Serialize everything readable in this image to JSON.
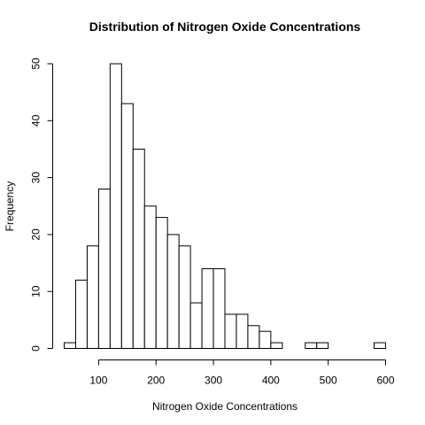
{
  "chart_data": {
    "type": "bar",
    "title": "Distribution of Nitrogen Oxide Concentrations",
    "xlabel": "Nitrogen Oxide Concentrations",
    "ylabel": "Frequency",
    "bin_width": 20,
    "bins": [
      {
        "start": 40,
        "end": 60,
        "count": 1
      },
      {
        "start": 60,
        "end": 80,
        "count": 12
      },
      {
        "start": 80,
        "end": 100,
        "count": 18
      },
      {
        "start": 100,
        "end": 120,
        "count": 28
      },
      {
        "start": 120,
        "end": 140,
        "count": 50
      },
      {
        "start": 140,
        "end": 160,
        "count": 43
      },
      {
        "start": 160,
        "end": 180,
        "count": 35
      },
      {
        "start": 180,
        "end": 200,
        "count": 25
      },
      {
        "start": 200,
        "end": 220,
        "count": 23
      },
      {
        "start": 220,
        "end": 240,
        "count": 20
      },
      {
        "start": 240,
        "end": 260,
        "count": 18
      },
      {
        "start": 260,
        "end": 280,
        "count": 8
      },
      {
        "start": 280,
        "end": 300,
        "count": 14
      },
      {
        "start": 300,
        "end": 320,
        "count": 14
      },
      {
        "start": 320,
        "end": 340,
        "count": 6
      },
      {
        "start": 340,
        "end": 360,
        "count": 6
      },
      {
        "start": 360,
        "end": 380,
        "count": 4
      },
      {
        "start": 380,
        "end": 400,
        "count": 3
      },
      {
        "start": 400,
        "end": 420,
        "count": 1
      },
      {
        "start": 420,
        "end": 440,
        "count": 0
      },
      {
        "start": 440,
        "end": 460,
        "count": 0
      },
      {
        "start": 460,
        "end": 480,
        "count": 1
      },
      {
        "start": 480,
        "end": 500,
        "count": 1
      },
      {
        "start": 500,
        "end": 520,
        "count": 0
      },
      {
        "start": 520,
        "end": 540,
        "count": 0
      },
      {
        "start": 540,
        "end": 560,
        "count": 0
      },
      {
        "start": 560,
        "end": 580,
        "count": 0
      },
      {
        "start": 580,
        "end": 600,
        "count": 1
      }
    ],
    "xlim": [
      40,
      600
    ],
    "ylim": [
      0,
      50
    ],
    "xticks": [
      100,
      200,
      300,
      400,
      500,
      600
    ],
    "yticks": [
      0,
      10,
      20,
      30,
      40,
      50
    ],
    "grid": false,
    "legend": "none"
  }
}
